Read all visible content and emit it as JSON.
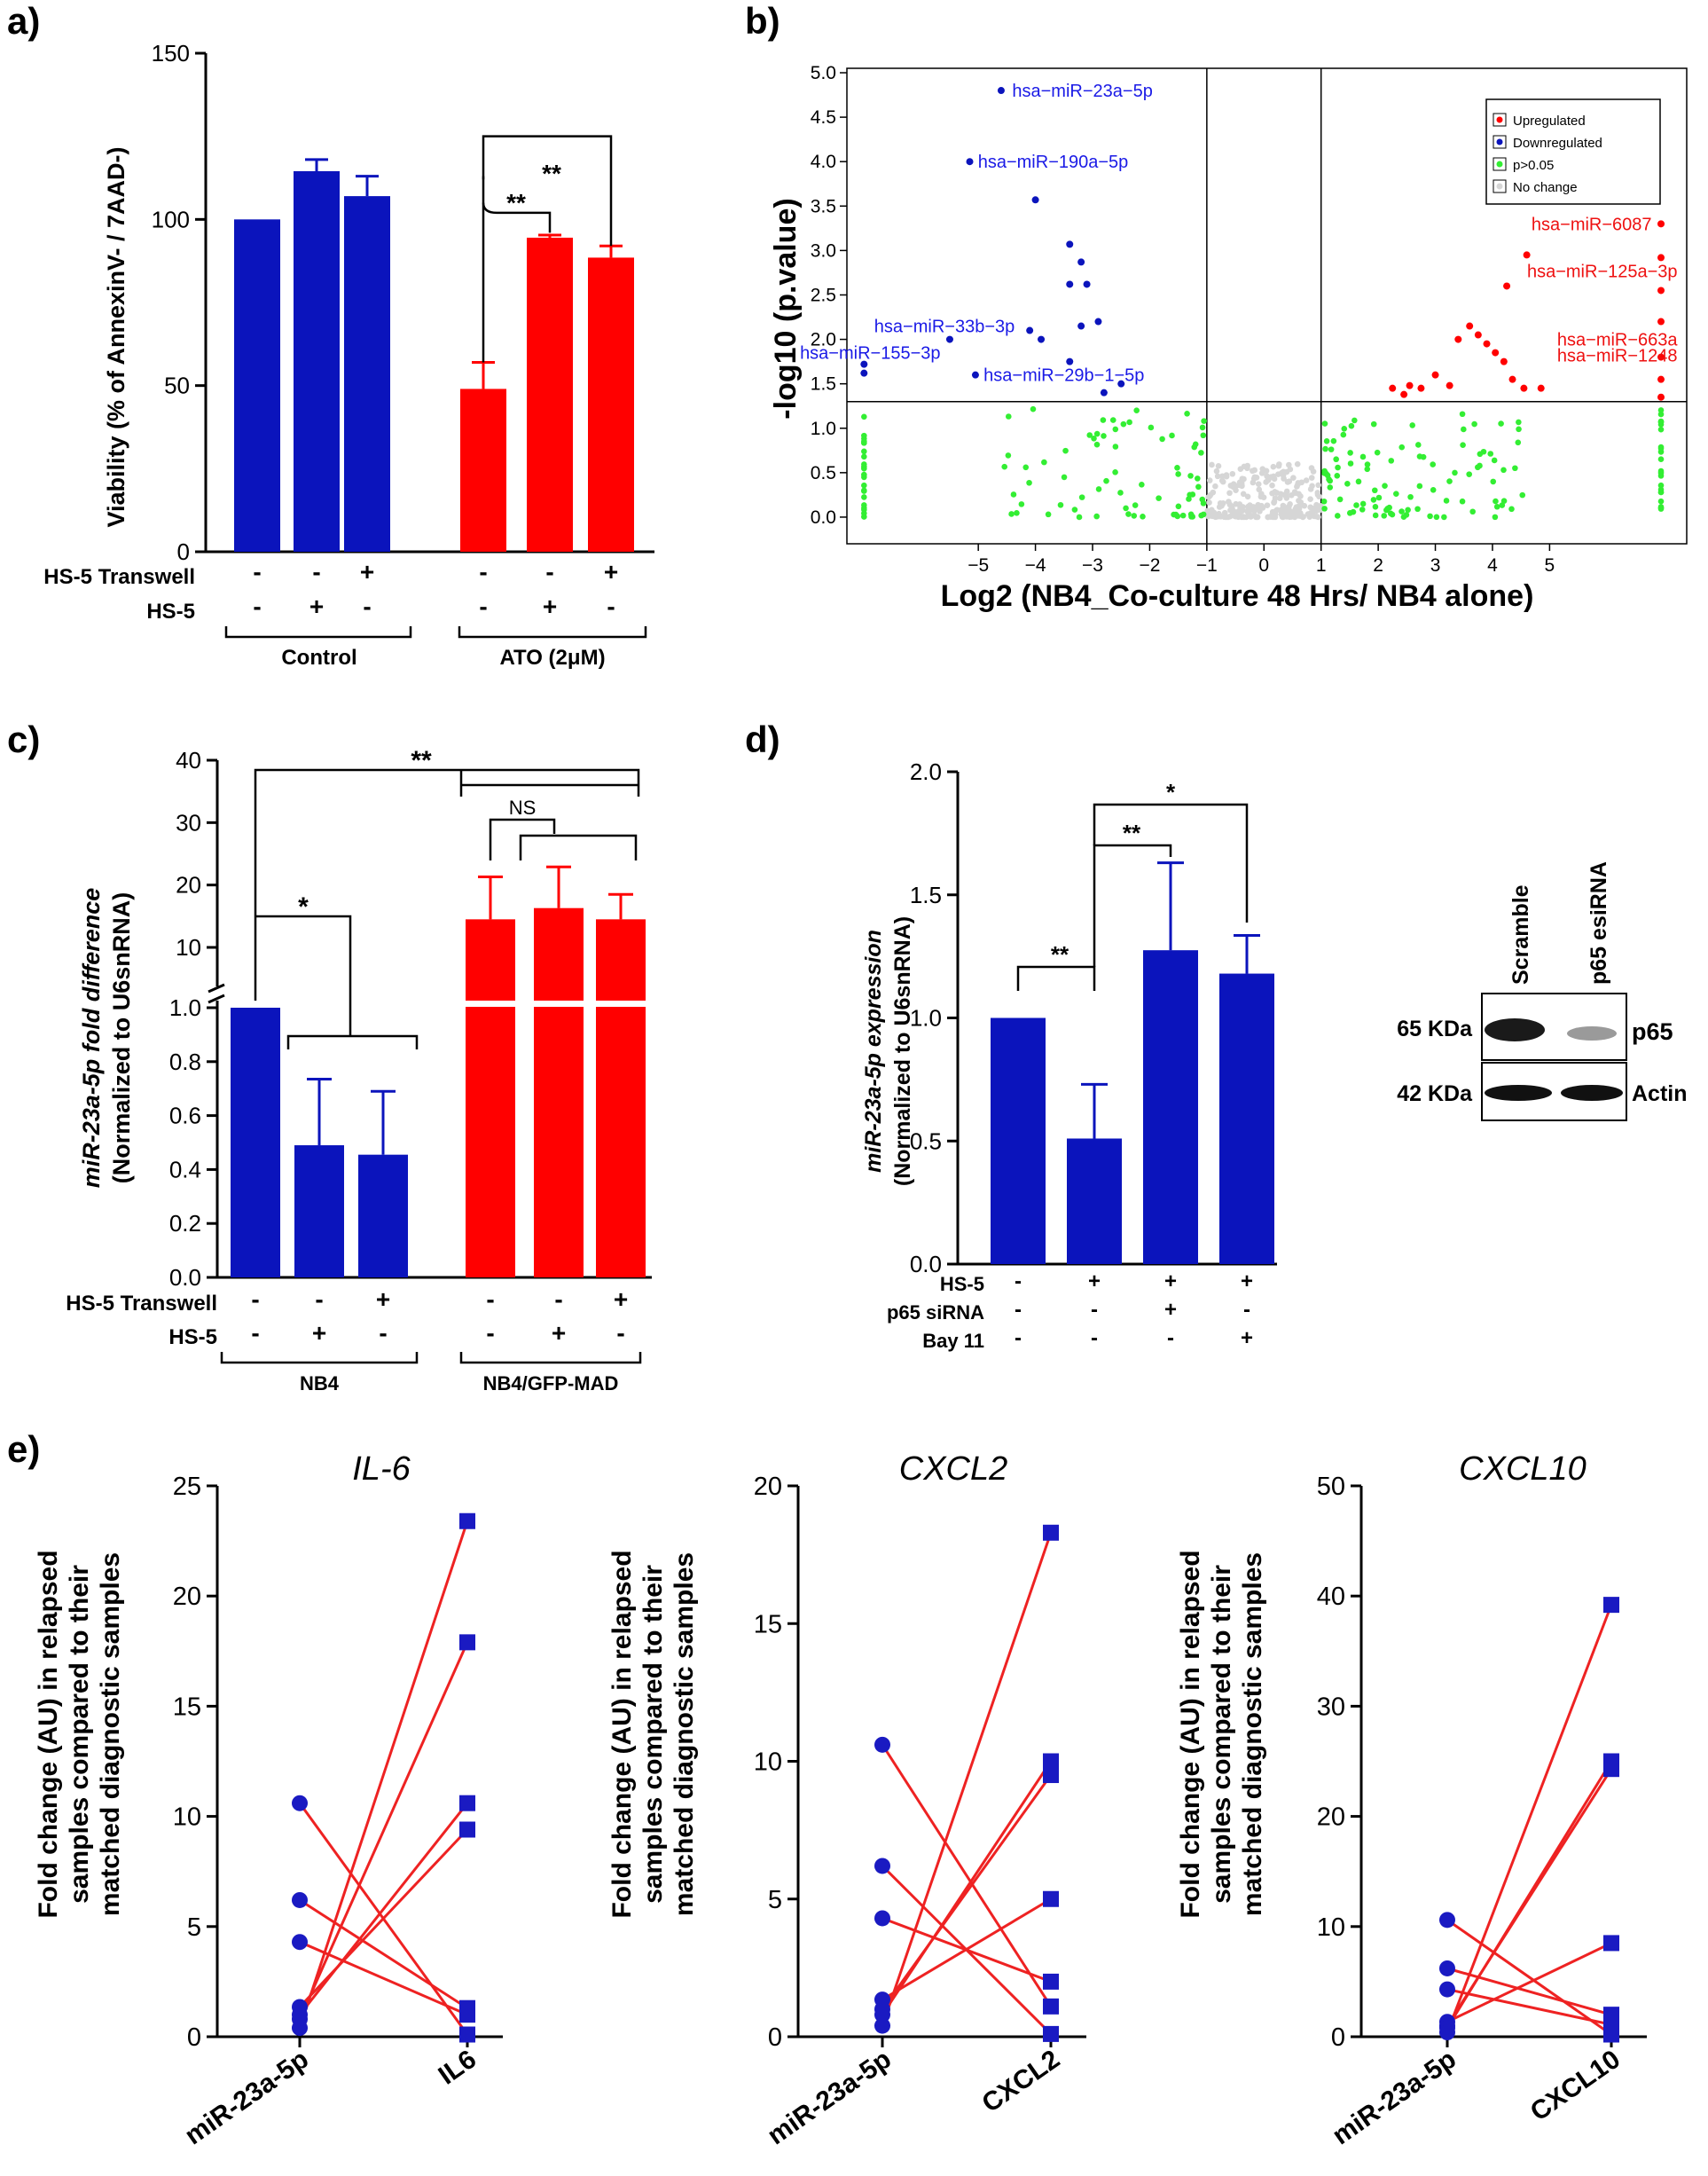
{
  "colors": {
    "blue": "#0b14bc",
    "red": "#ff0000",
    "green": "#33ee33",
    "grey": "#d6d6d6",
    "label_blue": "#1a1ae6",
    "label_red": "#ee1111",
    "line_red": "#ee2222",
    "square_blue": "#1a1ac2"
  },
  "panel_labels": [
    "a)",
    "b)",
    "c)",
    "d)",
    "e)"
  ],
  "chart_data": [
    {
      "id": "a",
      "type": "bar",
      "ylabel": "Viability (% of AnnexinV- / 7AAD-)",
      "ylim": [
        0,
        150
      ],
      "yticks": [
        0,
        50,
        100,
        150
      ],
      "values": [
        100,
        114.5,
        107,
        49,
        94.5,
        88.5
      ],
      "errors": [
        0,
        3.5,
        6,
        8,
        0.8,
        3.5
      ],
      "bar_colors": [
        "blue",
        "blue",
        "blue",
        "red",
        "red",
        "red"
      ],
      "rows": [
        {
          "label": "HS-5 Transwell",
          "values": [
            "-",
            "-",
            "+",
            "-",
            "-",
            "+"
          ]
        },
        {
          "label": "HS-5",
          "values": [
            "-",
            "+",
            "-",
            "-",
            "+",
            "-"
          ]
        }
      ],
      "groups": [
        "Control",
        "ATO (2μM)"
      ],
      "significance": [
        "**",
        "**"
      ]
    },
    {
      "id": "b",
      "type": "scatter",
      "xlabel": "Log2 (NB4_Co-culture 48 Hrs/ NB4 alone)",
      "ylabel": "-log10 (p.value)",
      "xlim": [
        -7.3,
        7.4
      ],
      "ylim": [
        -0.3,
        5.05
      ],
      "xticks": [
        -5,
        -4,
        -3,
        -2,
        -1,
        0,
        1,
        2,
        3,
        4,
        5
      ],
      "yticks": [
        0.0,
        0.5,
        1.0,
        1.5,
        2.0,
        2.5,
        3.0,
        3.5,
        4.0,
        4.5,
        5.0
      ],
      "threshold_x": [
        -1,
        1
      ],
      "threshold_y": 1.3,
      "legend": [
        "Upregulated",
        "Downregulated",
        "p>0.05",
        "No change"
      ],
      "downregulated_points": [
        [
          -4.6,
          4.8
        ],
        [
          -5.15,
          4.0
        ],
        [
          -4.0,
          3.57
        ],
        [
          -3.4,
          3.07
        ],
        [
          -3.2,
          2.87
        ],
        [
          -3.4,
          2.62
        ],
        [
          -3.1,
          2.62
        ],
        [
          -3.2,
          2.15
        ],
        [
          -2.9,
          2.2
        ],
        [
          -3.9,
          2.0
        ],
        [
          -4.1,
          2.1
        ],
        [
          -5.5,
          2.0
        ],
        [
          -3.4,
          1.75
        ],
        [
          -5.05,
          1.6
        ],
        [
          -2.5,
          1.5
        ],
        [
          -2.8,
          1.4
        ],
        [
          -7.0,
          1.72
        ],
        [
          -7.0,
          1.62
        ]
      ],
      "upregulated_points": [
        [
          6.95,
          3.3
        ],
        [
          4.6,
          2.95
        ],
        [
          4.25,
          2.6
        ],
        [
          6.95,
          2.92
        ],
        [
          6.95,
          2.55
        ],
        [
          6.95,
          2.2
        ],
        [
          3.6,
          2.15
        ],
        [
          3.75,
          2.05
        ],
        [
          3.4,
          2.0
        ],
        [
          3.9,
          1.95
        ],
        [
          4.05,
          1.85
        ],
        [
          4.2,
          1.75
        ],
        [
          4.35,
          1.55
        ],
        [
          4.55,
          1.45
        ],
        [
          4.85,
          1.45
        ],
        [
          3.0,
          1.6
        ],
        [
          2.75,
          1.45
        ],
        [
          2.55,
          1.48
        ],
        [
          2.45,
          1.38
        ],
        [
          3.25,
          1.48
        ],
        [
          6.95,
          1.8
        ],
        [
          6.95,
          1.55
        ],
        [
          6.95,
          1.35
        ],
        [
          2.25,
          1.45
        ]
      ],
      "labels": [
        {
          "text": "hsa−miR−23a−5p",
          "x": -4.5,
          "y": 4.8,
          "side": "right",
          "color": "blue"
        },
        {
          "text": "hsa−miR−190a−5p",
          "x": -5.1,
          "y": 4.0,
          "side": "right",
          "color": "blue"
        },
        {
          "text": "hsa−miR−33b−3p",
          "x": -4.3,
          "y": 2.15,
          "side": "left",
          "color": "blue"
        },
        {
          "text": "hsa−miR−155−3p",
          "x": -5.6,
          "y": 1.85,
          "side": "left",
          "color": "blue"
        },
        {
          "text": "hsa−miR−29b−1−5p",
          "x": -5.0,
          "y": 1.6,
          "side": "right",
          "color": "blue"
        },
        {
          "text": "hsa−miR−6087",
          "x": 6.85,
          "y": 3.3,
          "side": "left",
          "color": "red"
        },
        {
          "text": "hsa−miR−125a−3p",
          "x": 7.3,
          "y": 2.77,
          "side": "left",
          "color": "red"
        },
        {
          "text": "hsa−miR−663a",
          "x": 7.3,
          "y": 2.0,
          "side": "left",
          "color": "red"
        },
        {
          "text": "hsa−miR−1248",
          "x": 7.3,
          "y": 1.82,
          "side": "left",
          "color": "red"
        }
      ]
    },
    {
      "id": "c",
      "type": "bar",
      "ylabel_line1": "miR-23a-5p fold difference",
      "ylabel_line2": "(Normalized to U6snRNA)",
      "yticks_lower": [
        "0.0",
        "0.2",
        "0.4",
        "0.6",
        "0.8",
        "1.0"
      ],
      "yticks_upper": [
        "10",
        "20",
        "30",
        "40"
      ],
      "broken_axis": {
        "lower": [
          0,
          1.0
        ],
        "upper": [
          10,
          40
        ]
      },
      "values": [
        1.0,
        0.49,
        0.455,
        14.5,
        16.3,
        14.5
      ],
      "errors": [
        0,
        0.245,
        0.235,
        6.8,
        6.6,
        4.0
      ],
      "bar_colors": [
        "blue",
        "blue",
        "blue",
        "red",
        "red",
        "red"
      ],
      "rows": [
        {
          "label": "HS-5 Transwell",
          "values": [
            "-",
            "-",
            "+",
            "-",
            "-",
            "+"
          ]
        },
        {
          "label": "HS-5",
          "values": [
            "-",
            "+",
            "-",
            "-",
            "+",
            "-"
          ]
        }
      ],
      "groups": [
        "NB4",
        "NB4/GFP-MAD"
      ],
      "significance": [
        "**",
        "*",
        "NS"
      ]
    },
    {
      "id": "d",
      "type": "bar",
      "ylabel_line1": "miR-23a-5p expression",
      "ylabel_line2": "(Normalized to U6snRNA)",
      "ylim": [
        0,
        2.0
      ],
      "yticks": [
        "0.0",
        "0.5",
        "1.0",
        "1.5",
        "2.0"
      ],
      "values": [
        1.0,
        0.51,
        1.275,
        1.18
      ],
      "errors": [
        0,
        0.22,
        0.355,
        0.155
      ],
      "rows": [
        {
          "label": "HS-5",
          "values": [
            "-",
            "+",
            "+",
            "+"
          ]
        },
        {
          "label": "p65 siRNA",
          "values": [
            "-",
            "-",
            "+",
            "-"
          ]
        },
        {
          "label": "Bay 11",
          "values": [
            "-",
            "-",
            "-",
            "+"
          ]
        }
      ],
      "significance": [
        "**",
        "**",
        "*"
      ]
    },
    {
      "id": "e1",
      "type": "line",
      "title": "IL-6",
      "categories": [
        "miR-23a-5p",
        "IL6"
      ],
      "ylim": [
        0,
        25
      ],
      "yticks": [
        0,
        5,
        10,
        15,
        20,
        25
      ],
      "pairs": [
        [
          10.6,
          0.1
        ],
        [
          6.2,
          1.3
        ],
        [
          4.3,
          1.0
        ],
        [
          1.35,
          9.4
        ],
        [
          1.0,
          10.6
        ],
        [
          0.8,
          17.9
        ],
        [
          0.4,
          23.4
        ]
      ]
    },
    {
      "id": "e2",
      "type": "line",
      "title": "CXCL2",
      "categories": [
        "miR-23a-5p",
        "CXCL2"
      ],
      "ylim": [
        0,
        20
      ],
      "yticks": [
        0,
        5,
        10,
        15,
        20
      ],
      "pairs": [
        [
          10.6,
          1.1
        ],
        [
          6.2,
          0.1
        ],
        [
          4.3,
          2.0
        ],
        [
          1.35,
          5.0
        ],
        [
          1.0,
          9.5
        ],
        [
          0.8,
          10.0
        ],
        [
          0.4,
          18.3
        ]
      ]
    },
    {
      "id": "e3",
      "type": "line",
      "title": "CXCL10",
      "categories": [
        "miR-23a-5p",
        "CXCL10"
      ],
      "ylim": [
        0,
        50
      ],
      "yticks": [
        0,
        10,
        20,
        30,
        40,
        50
      ],
      "pairs": [
        [
          10.6,
          0.2
        ],
        [
          6.2,
          2.0
        ],
        [
          4.3,
          1.1
        ],
        [
          1.35,
          8.5
        ],
        [
          1.0,
          24.3
        ],
        [
          0.8,
          25.0
        ],
        [
          0.4,
          39.2
        ]
      ]
    }
  ],
  "shared_ylabel_e": [
    "Fold change (AU) in relapsed",
    "samples compared to their",
    "matched diagnostic samples"
  ],
  "blot": {
    "lanes": [
      "Scramble",
      "p65 esiRNA"
    ],
    "left_labels": [
      "65 KDa",
      "42 KDa"
    ],
    "right_labels": [
      "p65",
      "Actin"
    ]
  }
}
